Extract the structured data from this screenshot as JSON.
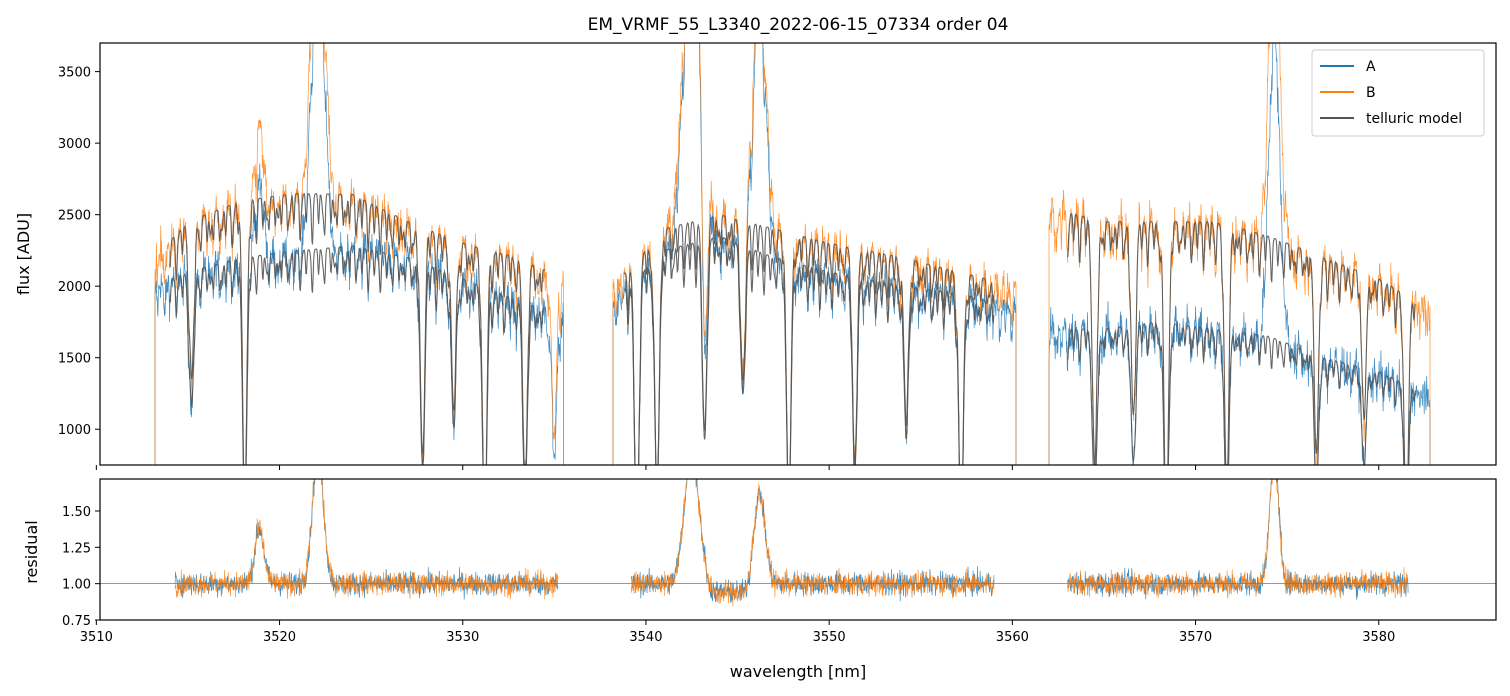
{
  "chart_data": {
    "type": "line",
    "title": "EM_VRMF_55_L3340_2022-06-15_07334  order 04",
    "xlabel": "wavelength [nm]",
    "xlim": [
      3510.2,
      3586.4
    ],
    "xticks": [
      3510,
      3520,
      3530,
      3540,
      3550,
      3560,
      3570,
      3580
    ],
    "xtick_labels": [
      "3510",
      "3520",
      "3530",
      "3540",
      "3550",
      "3560",
      "3570",
      "3580"
    ],
    "colors": {
      "A": "#1f77b4",
      "B": "#ff7f0e",
      "telluric": "#555555",
      "unity": "#777777"
    },
    "top_panel": {
      "ylabel": "flux [ADU]",
      "ylim": [
        750,
        3700
      ],
      "yticks": [
        1000,
        1500,
        2000,
        2500,
        3000,
        3500
      ],
      "ytick_labels": [
        "1000",
        "1500",
        "2000",
        "2500",
        "3000",
        "3500"
      ],
      "segments": [
        {
          "x_range": [
            3513.2,
            3535.5
          ],
          "A_continuum": [
            [
              3513.2,
              2000
            ],
            [
              3515,
              2100
            ],
            [
              3518,
              2200
            ],
            [
              3521,
              2250
            ],
            [
              3524,
              2280
            ],
            [
              3527,
              2200
            ],
            [
              3530,
              2050
            ],
            [
              3533,
              1900
            ],
            [
              3535.5,
              1800
            ]
          ],
          "B_continuum": [
            [
              3513.2,
              2200
            ],
            [
              3515,
              2450
            ],
            [
              3518,
              2600
            ],
            [
              3521,
              2650
            ],
            [
              3524,
              2640
            ],
            [
              3527,
              2450
            ],
            [
              3530,
              2300
            ],
            [
              3533,
              2200
            ],
            [
              3535.5,
              2050
            ]
          ],
          "noise": 120
        },
        {
          "x_range": [
            3538.2,
            3560.2
          ],
          "A_continuum": [
            [
              3538.2,
              1900
            ],
            [
              3541,
              2250
            ],
            [
              3544,
              2350
            ],
            [
              3547,
              2200
            ],
            [
              3550,
              2100
            ],
            [
              3554,
              2000
            ],
            [
              3557,
              1950
            ],
            [
              3560.2,
              1850
            ]
          ],
          "B_continuum": [
            [
              3538.2,
              2000
            ],
            [
              3541,
              2400
            ],
            [
              3544,
              2500
            ],
            [
              3547,
              2400
            ],
            [
              3550,
              2300
            ],
            [
              3554,
              2200
            ],
            [
              3557,
              2100
            ],
            [
              3560.2,
              2000
            ]
          ],
          "noise": 110
        },
        {
          "x_range": [
            3562,
            3582.8
          ],
          "A_continuum": [
            [
              3562,
              1700
            ],
            [
              3565,
              1700
            ],
            [
              3568,
              1750
            ],
            [
              3571,
              1700
            ],
            [
              3574,
              1650
            ],
            [
              3577,
              1500
            ],
            [
              3580,
              1400
            ],
            [
              3582.8,
              1250
            ]
          ],
          "B_continuum": [
            [
              3562,
              2550
            ],
            [
              3565,
              2450
            ],
            [
              3568,
              2450
            ],
            [
              3571,
              2450
            ],
            [
              3574,
              2350
            ],
            [
              3577,
              2200
            ],
            [
              3580,
              2050
            ],
            [
              3582.8,
              1850
            ]
          ],
          "noise": 140
        }
      ],
      "telluric_segments": [
        [
          3514,
          3534.5
        ],
        [
          3538.8,
          3559
        ],
        [
          3563,
          3582
        ]
      ],
      "emission_lines": [
        {
          "x": 3518.9,
          "amplitude": 0.25,
          "width": 0.25
        },
        {
          "x": 3522.1,
          "amplitude": 1.0,
          "width": 0.35
        },
        {
          "x": 3542.5,
          "amplitude": 1.0,
          "width": 0.45
        },
        {
          "x": 3546.2,
          "amplitude": 0.8,
          "width": 0.35
        },
        {
          "x": 3574.3,
          "amplitude": 1.0,
          "width": 0.3
        }
      ],
      "absorption_lines": [
        3515.2,
        3518.1,
        3527.8,
        3529.5,
        3531.2,
        3533.4,
        3535.0,
        3539.5,
        3540.6,
        3543.2,
        3545.3,
        3547.8,
        3551.4,
        3554.2,
        3557.2,
        3564.5,
        3566.6,
        3568.4,
        3571.7,
        3576.6,
        3579.2,
        3581.5
      ]
    },
    "bottom_panel": {
      "ylabel": "residual",
      "ylim": [
        0.75,
        1.72
      ],
      "yticks": [
        0.75,
        1.0,
        1.25,
        1.5
      ],
      "ytick_labels": [
        "0.75",
        "1.00",
        "1.25",
        "1.50"
      ],
      "reference_line": 1.0,
      "segments": [
        [
          3514.3,
          3535.2
        ],
        [
          3539.2,
          3559.0
        ],
        [
          3563.0,
          3581.6
        ]
      ],
      "noise": 0.08,
      "emission_peaks": [
        {
          "x": 3518.9,
          "peak": 1.38,
          "width": 0.25
        },
        {
          "x": 3522.1,
          "peak": 1.9,
          "width": 0.3
        },
        {
          "x": 3542.5,
          "peak": 1.9,
          "width": 0.4
        },
        {
          "x": 3546.2,
          "peak": 1.62,
          "width": 0.3
        },
        {
          "x": 3574.3,
          "peak": 1.85,
          "width": 0.25
        }
      ]
    },
    "legend": {
      "position": "top-right",
      "entries": [
        {
          "label": "A",
          "series": "A"
        },
        {
          "label": "B",
          "series": "B"
        },
        {
          "label": "telluric model",
          "series": "telluric"
        }
      ]
    }
  }
}
